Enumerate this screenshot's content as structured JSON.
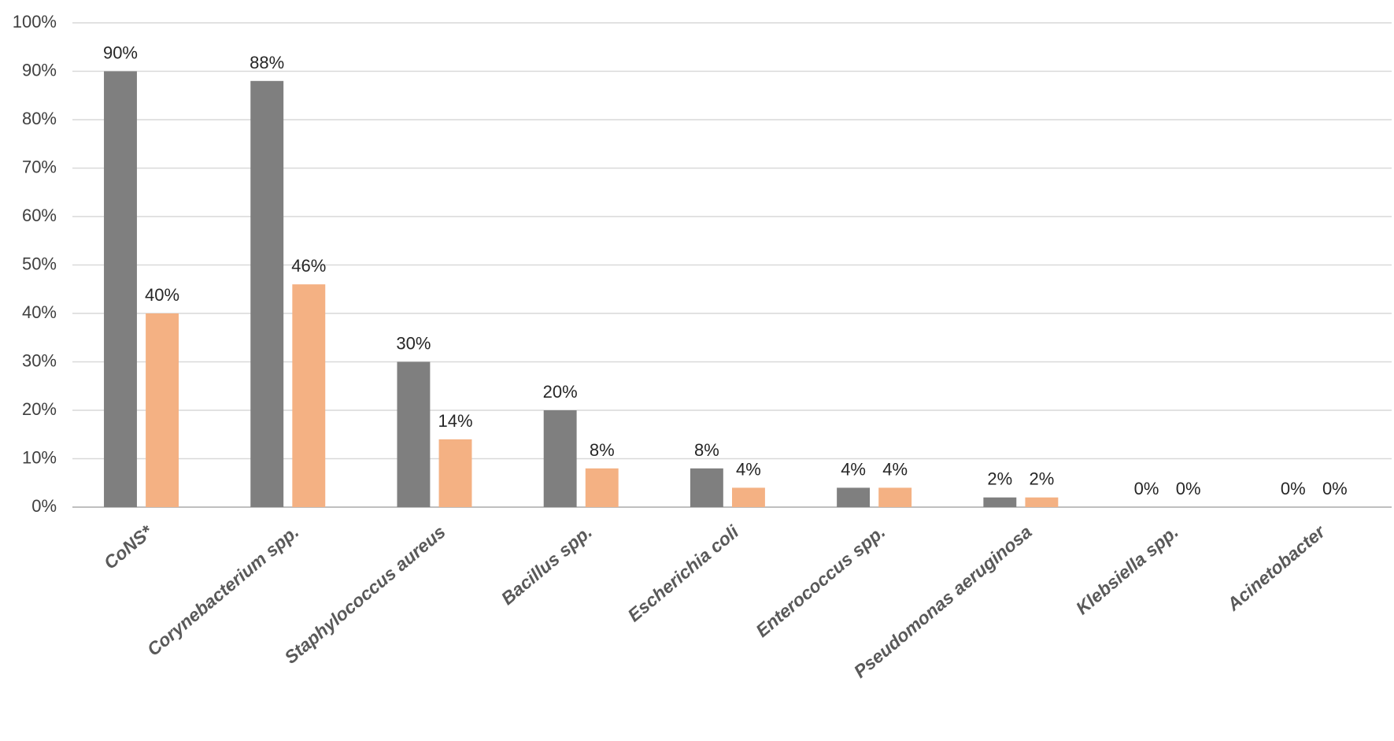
{
  "chart_data": {
    "type": "bar",
    "categories": [
      "CoNS*",
      "Corynebacterium spp.",
      "Staphylococcus aureus",
      "Bacillus spp.",
      "Escherichia coli",
      "Enterococcus spp.",
      "Pseudomonas aeruginosa",
      "Klebsiella spp.",
      "Acinetobacter"
    ],
    "series": [
      {
        "color": "#7f7f7f",
        "values": [
          90,
          88,
          30,
          20,
          8,
          4,
          2,
          0,
          0
        ],
        "value_labels": [
          "90%",
          "88%",
          "30%",
          "20%",
          "8%",
          "4%",
          "2%",
          "0%",
          "0%"
        ]
      },
      {
        "color": "#f4b183",
        "values": [
          40,
          46,
          14,
          8,
          4,
          4,
          2,
          0,
          0
        ],
        "value_labels": [
          "40%",
          "46%",
          "14%",
          "8%",
          "4%",
          "4%",
          "2%",
          "0%",
          "0%"
        ]
      }
    ],
    "ylim": [
      0,
      100
    ],
    "yticks": [
      {
        "value": 0,
        "label": "0%"
      },
      {
        "value": 10,
        "label": "10%"
      },
      {
        "value": 20,
        "label": "20%"
      },
      {
        "value": 30,
        "label": "30%"
      },
      {
        "value": 40,
        "label": "40%"
      },
      {
        "value": 50,
        "label": "50%"
      },
      {
        "value": 60,
        "label": "60%"
      },
      {
        "value": 70,
        "label": "70%"
      },
      {
        "value": 80,
        "label": "80%"
      },
      {
        "value": 90,
        "label": "90%"
      },
      {
        "value": 100,
        "label": "100%"
      }
    ],
    "grid": true
  }
}
